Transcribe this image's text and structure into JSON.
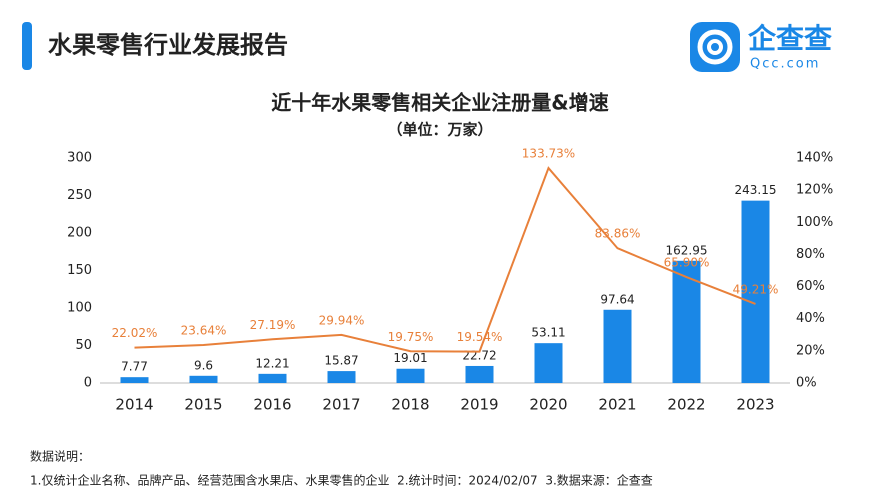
{
  "header": {
    "title": "水果零售行业发展报告",
    "logo_name": "企查查",
    "logo_domain": "Qcc.com"
  },
  "chart_data": {
    "type": "combo",
    "title": "近十年水果零售相关企业注册量&增速",
    "subtitle": "（单位：万家）",
    "categories": [
      "2014",
      "2015",
      "2016",
      "2017",
      "2018",
      "2019",
      "2020",
      "2021",
      "2022",
      "2023"
    ],
    "series": [
      {
        "type": "bar",
        "color": "#1a87e6",
        "values": [
          7.77,
          9.6,
          12.21,
          15.87,
          19.01,
          22.72,
          53.11,
          97.64,
          162.95,
          243.15
        ]
      },
      {
        "type": "line",
        "axis": "y2",
        "color": "#e8803a",
        "values": [
          22.02,
          23.64,
          27.19,
          29.94,
          19.75,
          19.54,
          133.73,
          83.86,
          65.9,
          49.21
        ],
        "value_labels": [
          "22.02%",
          "23.64%",
          "27.19%",
          "29.94%",
          "19.75%",
          "19.54%",
          "133.73%",
          "83.86%",
          "65.90%",
          "49.21%"
        ]
      }
    ],
    "ylim": [
      0,
      300
    ],
    "yticks": [
      0,
      50,
      100,
      150,
      200,
      250,
      300
    ],
    "y2lim": [
      0,
      140
    ],
    "y2ticks": [
      {
        "value": 0,
        "label": "0%"
      },
      {
        "value": 20,
        "label": "20%"
      },
      {
        "value": 40,
        "label": "40%"
      },
      {
        "value": 60,
        "label": "60%"
      },
      {
        "value": 80,
        "label": "80%"
      },
      {
        "value": 100,
        "label": "100%"
      },
      {
        "value": 120,
        "label": "120%"
      },
      {
        "value": 140,
        "label": "140%"
      }
    ],
    "grid": false
  },
  "notes": {
    "heading": "数据说明：",
    "text": "1.仅统计企业名称、品牌产品、经营范围含水果店、水果零售的企业  2.统计时间：2024/02/07  3.数据来源：企查查"
  }
}
